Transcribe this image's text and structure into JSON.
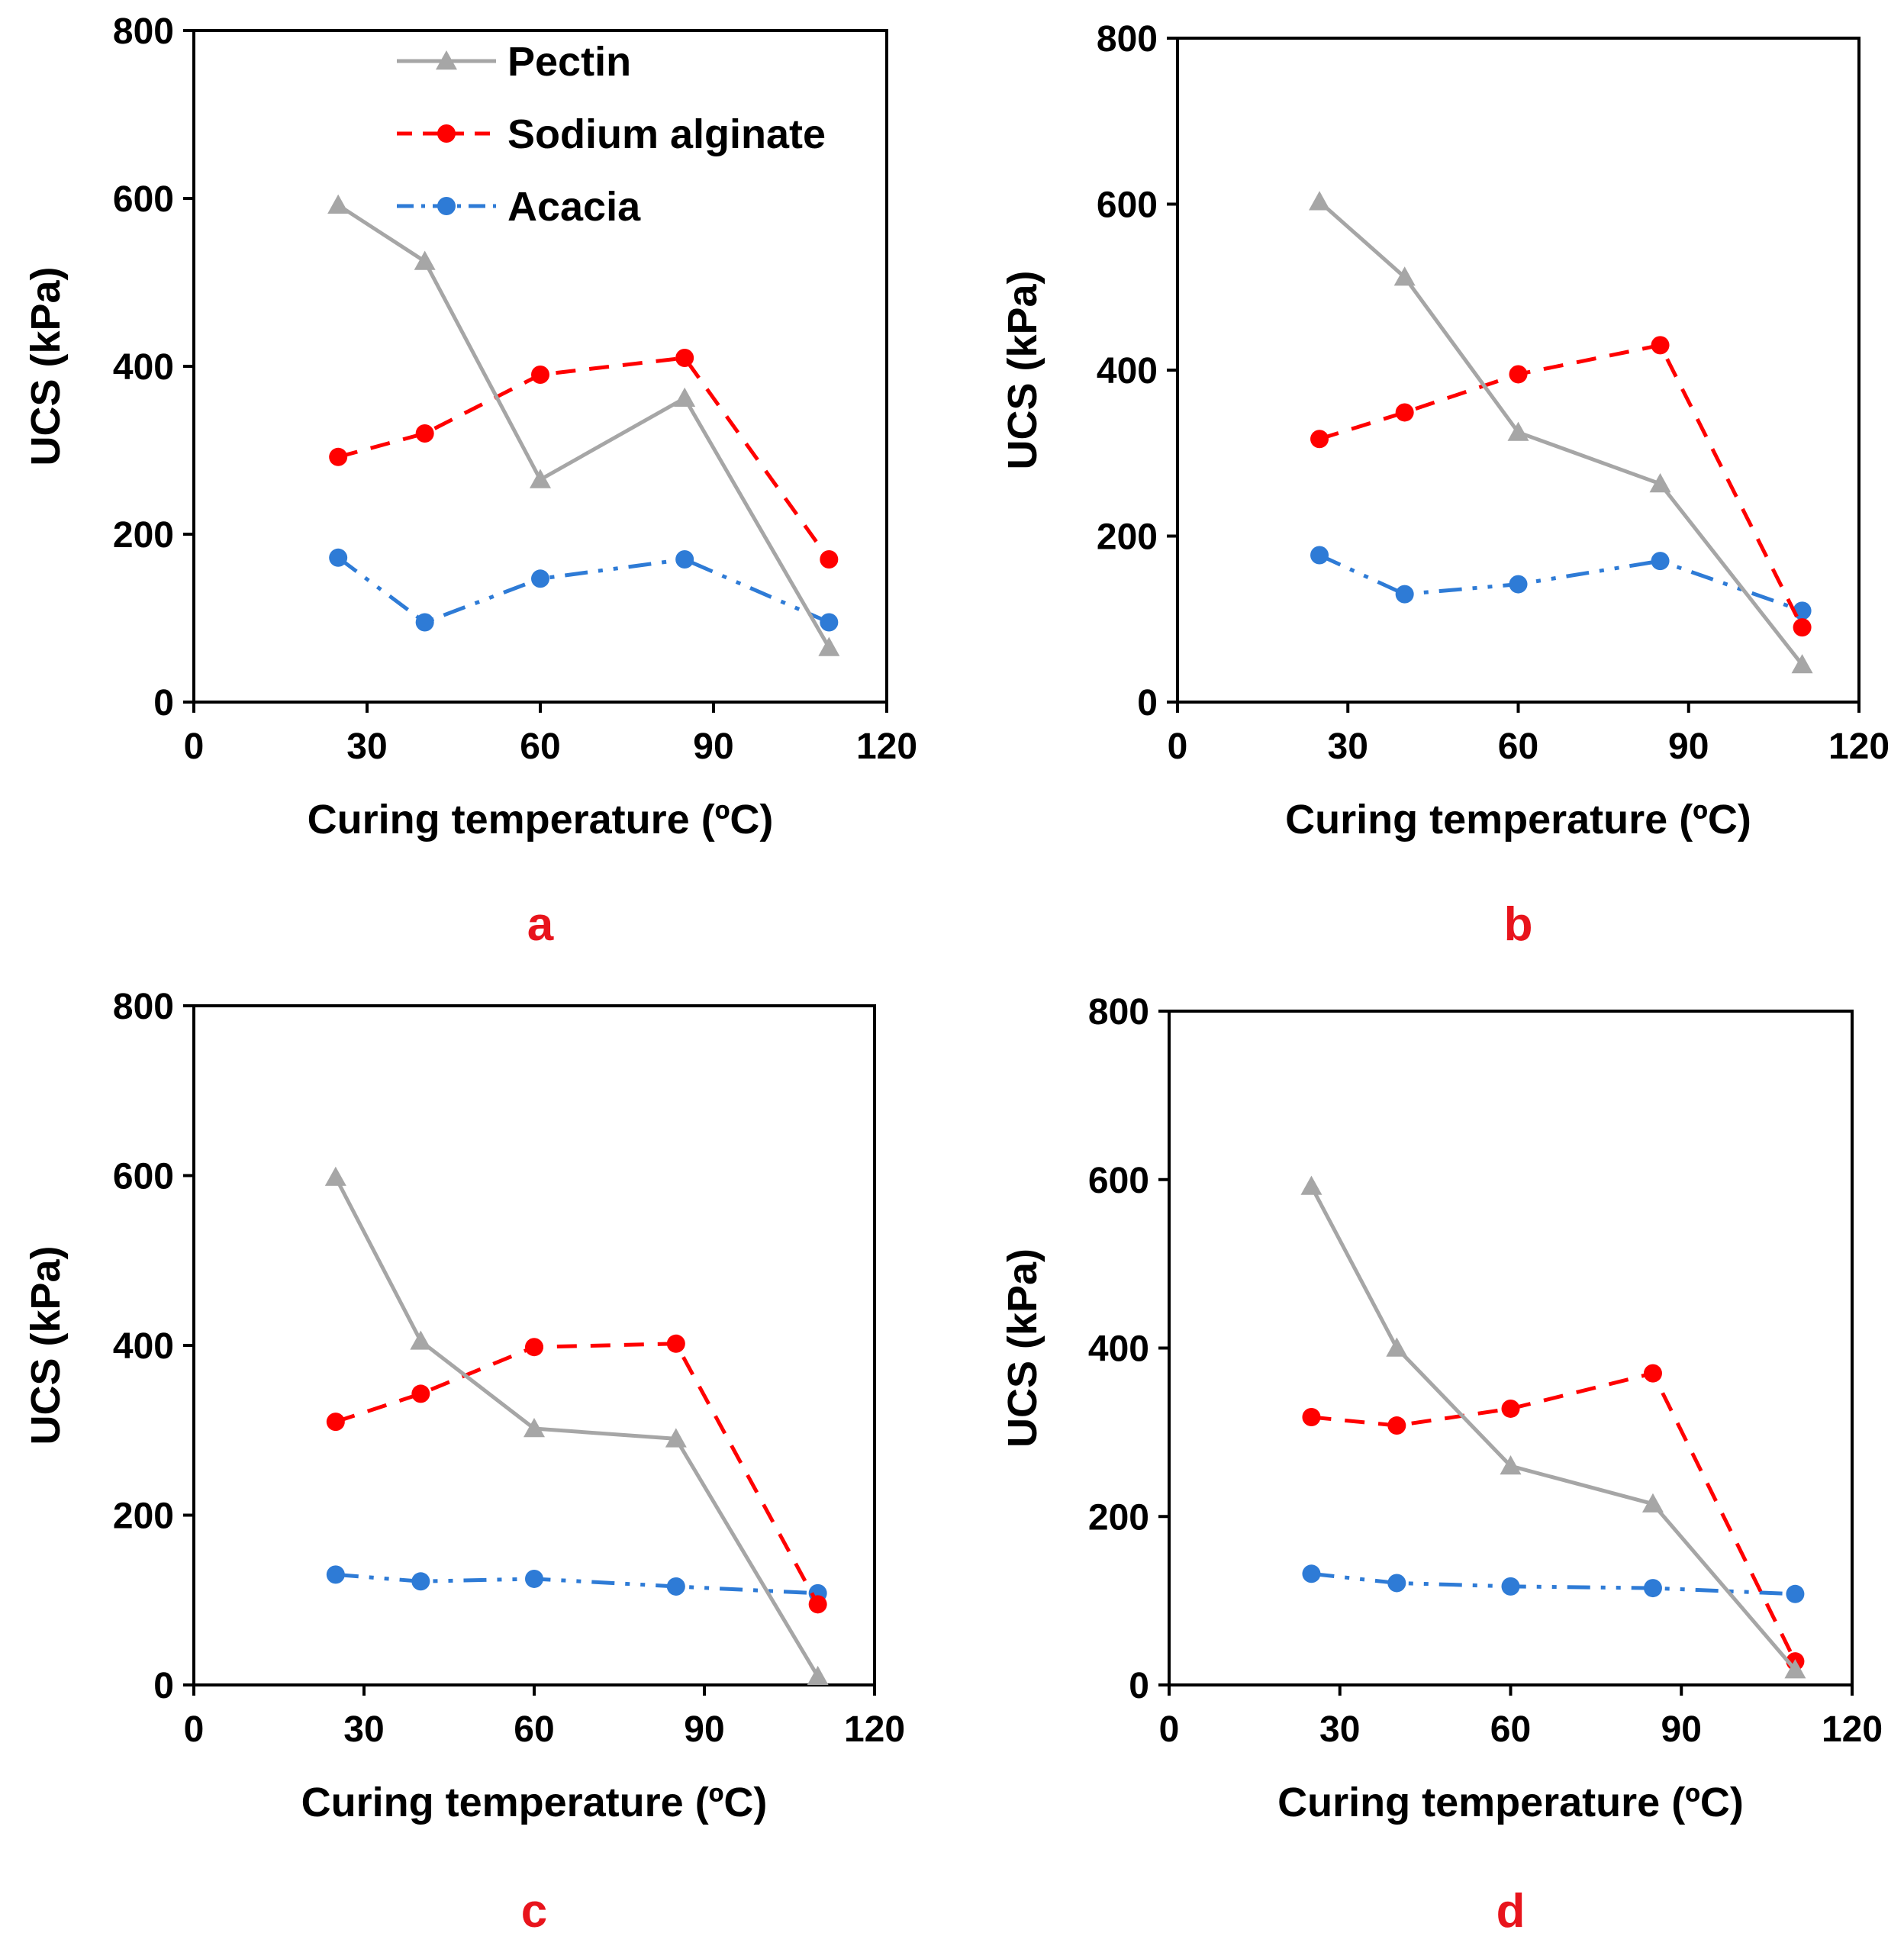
{
  "colors": {
    "pectin": "#a6a6a6",
    "sodium_alginate": "#ff0000",
    "acacia": "#2e7bd6",
    "panel_label": "#e8141c"
  },
  "legend": {
    "pectin": "Pectin",
    "sodium_alginate": "Sodium alginate",
    "acacia": "Acacia"
  },
  "chart_data": [
    {
      "panel": "a",
      "type": "line",
      "xlabel": "Curing temperature (ºC)",
      "ylabel": "UCS (kPa)",
      "xlim": [
        0,
        120
      ],
      "ylim": [
        0,
        800
      ],
      "xticks": [
        "0",
        "30",
        "60",
        "90",
        "120"
      ],
      "yticks": [
        "0",
        "200",
        "400",
        "600",
        "800"
      ],
      "x": [
        25,
        40,
        60,
        85,
        110
      ],
      "series": [
        {
          "name": "Pectin",
          "values": [
            592,
            525,
            265,
            362,
            65
          ]
        },
        {
          "name": "Sodium alginate",
          "values": [
            292,
            320,
            390,
            410,
            170
          ]
        },
        {
          "name": "Acacia",
          "values": [
            172,
            95,
            147,
            170,
            95
          ]
        }
      ]
    },
    {
      "panel": "b",
      "type": "line",
      "xlabel": "Curing temperature (ºC)",
      "ylabel": "UCS (kPa)",
      "xlim": [
        0,
        120
      ],
      "ylim": [
        0,
        800
      ],
      "xticks": [
        "0",
        "30",
        "60",
        "90",
        "120"
      ],
      "yticks": [
        "0",
        "200",
        "400",
        "600",
        "800"
      ],
      "x": [
        25,
        40,
        60,
        85,
        110
      ],
      "series": [
        {
          "name": "Pectin",
          "values": [
            603,
            512,
            325,
            263,
            45
          ]
        },
        {
          "name": "Sodium alginate",
          "values": [
            317,
            349,
            395,
            430,
            90
          ]
        },
        {
          "name": "Acacia",
          "values": [
            177,
            130,
            142,
            170,
            110
          ]
        }
      ]
    },
    {
      "panel": "c",
      "type": "line",
      "xlabel": "Curing temperature (ºC)",
      "ylabel": "UCS (kPa)",
      "xlim": [
        0,
        120
      ],
      "ylim": [
        0,
        800
      ],
      "xticks": [
        "0",
        "30",
        "60",
        "90",
        "120"
      ],
      "yticks": [
        "0",
        "200",
        "400",
        "600",
        "800"
      ],
      "x": [
        25,
        40,
        60,
        85,
        110
      ],
      "series": [
        {
          "name": "Pectin",
          "values": [
            598,
            405,
            302,
            290,
            10
          ]
        },
        {
          "name": "Sodium alginate",
          "values": [
            310,
            343,
            398,
            402,
            95
          ]
        },
        {
          "name": "Acacia",
          "values": [
            130,
            122,
            125,
            116,
            108
          ]
        }
      ]
    },
    {
      "panel": "d",
      "type": "line",
      "xlabel": "Curing temperature (ºC)",
      "ylabel": "UCS (kPa)",
      "xlim": [
        0,
        120
      ],
      "ylim": [
        0,
        800
      ],
      "xticks": [
        "0",
        "30",
        "60",
        "90",
        "120"
      ],
      "yticks": [
        "0",
        "200",
        "400",
        "600",
        "800"
      ],
      "x": [
        25,
        40,
        60,
        85,
        110
      ],
      "series": [
        {
          "name": "Pectin",
          "values": [
            592,
            400,
            260,
            215,
            18
          ]
        },
        {
          "name": "Sodium alginate",
          "values": [
            318,
            308,
            328,
            370,
            28
          ]
        },
        {
          "name": "Acacia",
          "values": [
            132,
            121,
            117,
            115,
            108
          ]
        }
      ]
    }
  ]
}
